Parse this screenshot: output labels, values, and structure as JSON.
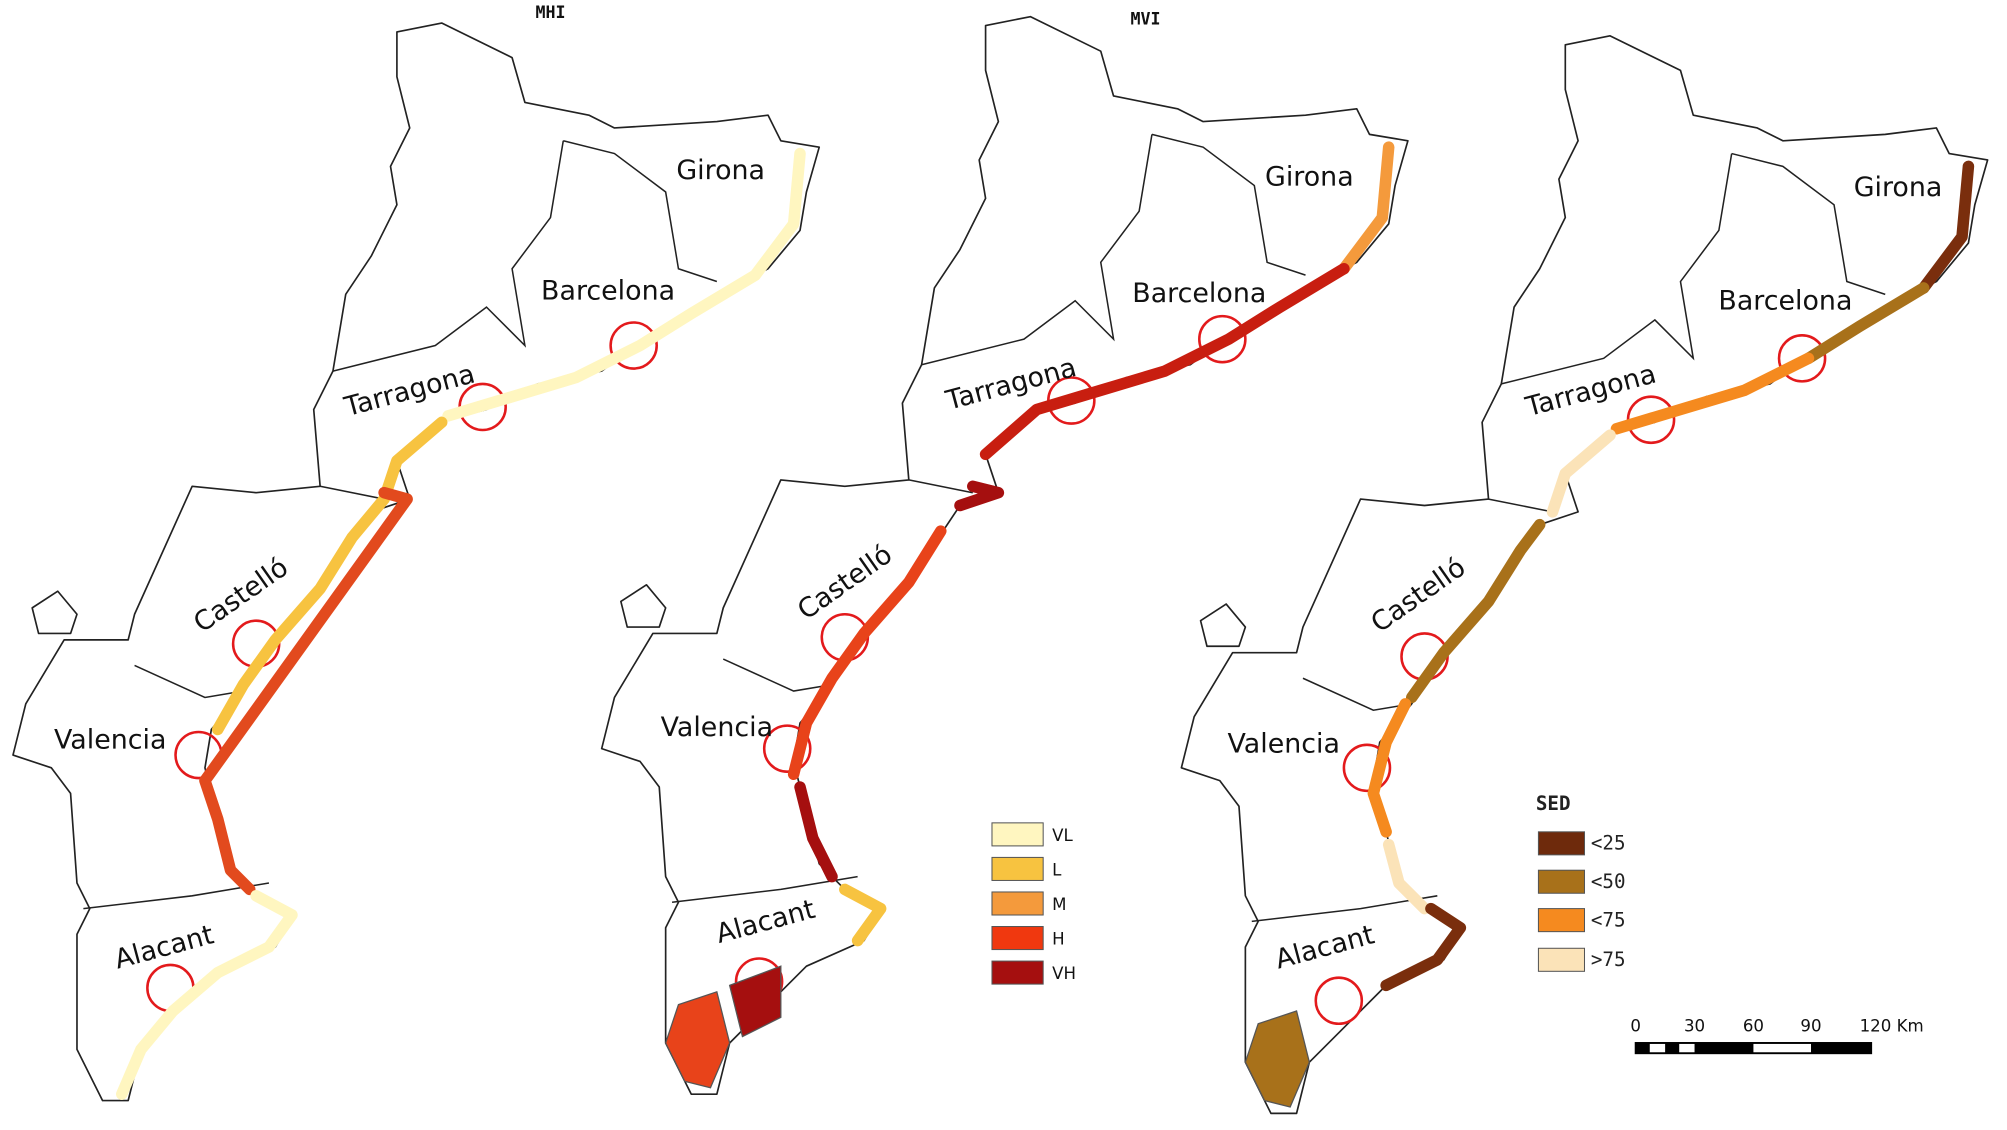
{
  "maps": [
    {
      "title": "MHI",
      "labels": [
        "Girona",
        "Barcelona",
        "Tarragona",
        "Castelló",
        "Valencia",
        "Alacant"
      ]
    },
    {
      "title": "MVI",
      "labels": [
        "Girona",
        "Barcelona",
        "Tarragona",
        "Castelló",
        "Valencia",
        "Alacant"
      ]
    },
    {
      "labels": [
        "Girona",
        "Barcelona",
        "Tarragona",
        "Castelló",
        "Valencia",
        "Alacant"
      ]
    }
  ],
  "legend_hazard": {
    "items": [
      "VL",
      "L",
      "M",
      "H",
      "VH"
    ]
  },
  "legend_sed": {
    "title": "SED",
    "items": [
      "<25",
      "<50",
      "<75",
      ">75"
    ]
  },
  "scale_bar": {
    "labels": [
      "0",
      "30",
      "60",
      "90",
      "120 Km"
    ]
  }
}
